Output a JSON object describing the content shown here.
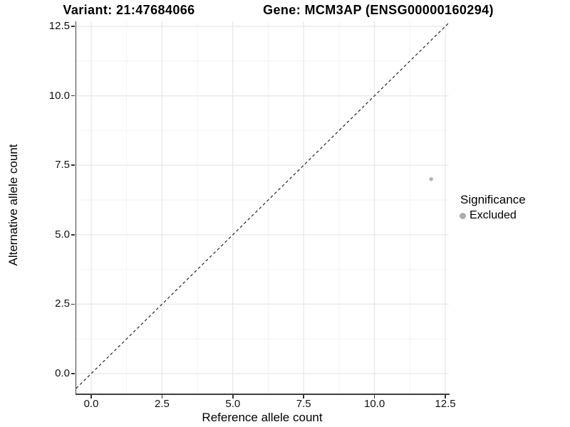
{
  "figure": {
    "titles": {
      "variant": "Variant: 21:47684066",
      "gene": "Gene: MCM3AP (ENSG00000160294)"
    },
    "axes": {
      "x": {
        "label": "Reference allele count",
        "ticks": [
          "0.0",
          "2.5",
          "5.0",
          "7.5",
          "10.0",
          "12.5"
        ]
      },
      "y": {
        "label": "Alternative allele count",
        "ticks": [
          "0.0",
          "2.5",
          "5.0",
          "7.5",
          "10.0",
          "12.5"
        ]
      }
    },
    "legend": {
      "title": "Significance",
      "items": [
        {
          "label": "Excluded",
          "color": "#ababab"
        }
      ]
    }
  },
  "chart_data": {
    "type": "scatter",
    "title": "Variant: 21:47684066 | Gene: MCM3AP (ENSG00000160294)",
    "xlabel": "Reference allele count",
    "ylabel": "Alternative allele count",
    "x_ticks": [
      0,
      2.5,
      5,
      7.5,
      10,
      12.5
    ],
    "y_ticks": [
      0,
      2.5,
      5,
      7.5,
      10,
      12.5
    ],
    "xlim": [
      -0.53,
      12.63
    ],
    "ylim": [
      -0.72,
      12.68
    ],
    "grid": "major+minor",
    "grid_major_color": "#e6e6e6",
    "grid_minor_color": "#f2f2f2",
    "legend_position": "right",
    "series": [
      {
        "name": "Excluded",
        "color": "#b2b2b2",
        "points": [
          {
            "x": 12,
            "y": 7
          }
        ]
      }
    ],
    "reference_line": {
      "type": "identity",
      "slope": 1,
      "intercept": 0,
      "style": "dashed",
      "color": "#111111"
    }
  }
}
